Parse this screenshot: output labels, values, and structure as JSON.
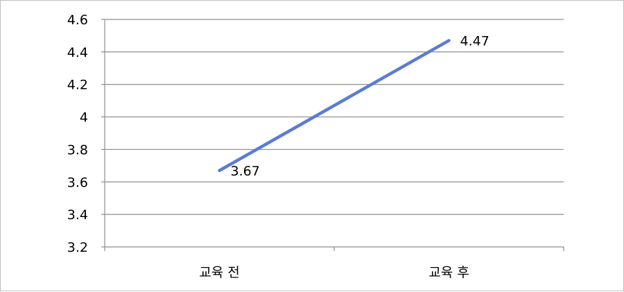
{
  "chart_data": {
    "type": "line",
    "title": "",
    "xlabel": "",
    "ylabel": "",
    "categories": [
      "교육 전",
      "교육 후"
    ],
    "series": [
      {
        "values": [
          3.67,
          4.47
        ]
      }
    ],
    "data_labels": [
      "3.67",
      "4.47"
    ],
    "ylim": [
      3.2,
      4.6
    ],
    "yticks": [
      3.2,
      3.4,
      3.6,
      3.8,
      4,
      4.2,
      4.4,
      4.6
    ],
    "ytick_labels": [
      "3.2",
      "3.4",
      "3.6",
      "3.8",
      "4",
      "4.2",
      "4.4",
      "4.6"
    ],
    "grid": true,
    "legend": "none",
    "line_color": "#5b7bd5",
    "grid_color": "#8c8c8c"
  }
}
